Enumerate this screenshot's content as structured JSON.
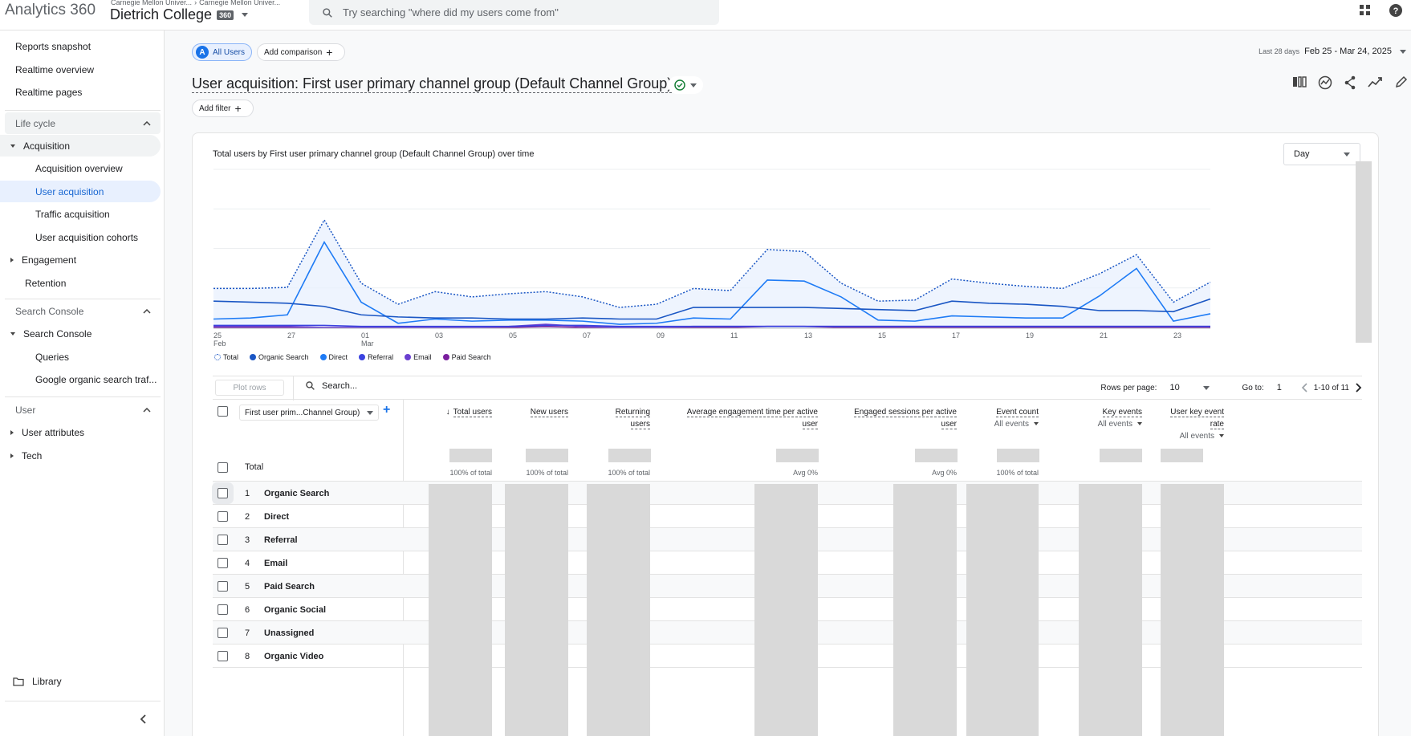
{
  "header": {
    "brand": "Analytics 360",
    "breadcrumb": [
      "Carnegie Mellon Univer...",
      "Carnegie Mellon Univer..."
    ],
    "property": "Dietrich College",
    "property_badge": "360",
    "search_placeholder": "Try searching \"where did my users come from\""
  },
  "sidebar": {
    "top_items": [
      "Reports snapshot",
      "Realtime overview",
      "Realtime pages"
    ],
    "lifecycle": {
      "heading": "Life cycle",
      "acquisition": "Acquisition",
      "acquisition_children": [
        "Acquisition overview",
        "User acquisition",
        "Traffic acquisition",
        "User acquisition cohorts"
      ],
      "engagement": "Engagement",
      "retention": "Retention"
    },
    "search_console": {
      "heading": "Search Console",
      "group": "Search Console",
      "children": [
        "Queries",
        "Google organic search traf..."
      ]
    },
    "user": {
      "heading": "User",
      "items": [
        "User attributes",
        "Tech"
      ]
    },
    "library": "Library"
  },
  "toolbar": {
    "segment_letter": "A",
    "segment": "All Users",
    "add_comparison": "Add comparison",
    "date_label": "Last 28 days",
    "date_range": "Feb 25 - Mar 24, 2025",
    "add_filter": "Add filter"
  },
  "report": {
    "title": "User acquisition: First user primary channel group (Default Channel Group)"
  },
  "chart_data": {
    "type": "line",
    "title": "Total users by First user primary channel group (Default Channel Group) over time",
    "granularity": "Day",
    "x_tick_labels": [
      {
        "top": "25",
        "bottom": "Feb"
      },
      {
        "top": "27",
        "bottom": ""
      },
      {
        "top": "01",
        "bottom": "Mar"
      },
      {
        "top": "03",
        "bottom": ""
      },
      {
        "top": "05",
        "bottom": ""
      },
      {
        "top": "07",
        "bottom": ""
      },
      {
        "top": "09",
        "bottom": ""
      },
      {
        "top": "11",
        "bottom": ""
      },
      {
        "top": "13",
        "bottom": ""
      },
      {
        "top": "15",
        "bottom": ""
      },
      {
        "top": "17",
        "bottom": ""
      },
      {
        "top": "19",
        "bottom": ""
      },
      {
        "top": "21",
        "bottom": ""
      },
      {
        "top": "23",
        "bottom": ""
      }
    ],
    "x": [
      "Feb 25",
      "Feb 26",
      "Feb 27",
      "Feb 28",
      "Mar 01",
      "Mar 02",
      "Mar 03",
      "Mar 04",
      "Mar 05",
      "Mar 06",
      "Mar 07",
      "Mar 08",
      "Mar 09",
      "Mar 10",
      "Mar 11",
      "Mar 12",
      "Mar 13",
      "Mar 14",
      "Mar 15",
      "Mar 16",
      "Mar 17",
      "Mar 18",
      "Mar 19",
      "Mar 20",
      "Mar 21",
      "Mar 22",
      "Mar 23",
      "Mar 24"
    ],
    "ylim": [
      0,
      150
    ],
    "series": [
      {
        "name": "Total",
        "color": "#1a56c4",
        "style": "dotted",
        "values": [
          37,
          37,
          38,
          102,
          42,
          22,
          34,
          29,
          32,
          34,
          29,
          19,
          22,
          37,
          35,
          74,
          72,
          42,
          25,
          26,
          46,
          42,
          39,
          37,
          51,
          69,
          24,
          43
        ]
      },
      {
        "name": "Organic Search",
        "color": "#1a56c4",
        "style": "solid",
        "values": [
          25,
          24,
          23,
          20,
          12,
          10,
          9,
          9,
          8,
          8,
          9,
          8,
          8,
          19,
          19,
          19,
          19,
          18,
          17,
          16,
          25,
          23,
          22,
          20,
          16,
          16,
          15,
          27
        ]
      },
      {
        "name": "Direct",
        "color": "#1e7bf5",
        "style": "solid",
        "values": [
          8,
          9,
          12,
          81,
          24,
          4,
          8,
          6,
          7,
          7,
          6,
          3,
          4,
          9,
          8,
          45,
          44,
          29,
          7,
          6,
          11,
          10,
          9,
          9,
          30,
          56,
          6,
          13
        ]
      },
      {
        "name": "Referral",
        "color": "#3b43e0",
        "style": "solid",
        "values": [
          2,
          2,
          2,
          2,
          1,
          1,
          1,
          1,
          1,
          2,
          2,
          1,
          1,
          1,
          1,
          1,
          1,
          1,
          1,
          1,
          1,
          1,
          1,
          1,
          1,
          1,
          1,
          1
        ]
      },
      {
        "name": "Email",
        "color": "#6a3fd0",
        "style": "solid",
        "values": [
          1,
          1,
          1,
          0,
          0,
          0,
          0,
          0,
          1,
          3,
          1,
          0,
          0,
          1,
          1,
          1,
          1,
          1,
          1,
          1,
          1,
          1,
          1,
          1,
          1,
          1,
          1,
          1
        ]
      },
      {
        "name": "Paid Search",
        "color": "#7a1f9e",
        "style": "solid",
        "values": [
          0,
          0,
          0,
          0,
          0,
          0,
          0,
          0,
          0,
          1,
          0,
          0,
          0,
          0,
          0,
          1,
          1,
          0,
          0,
          0,
          0,
          0,
          0,
          0,
          0,
          0,
          0,
          0
        ]
      }
    ]
  },
  "table": {
    "plot_rows": "Plot rows",
    "search_placeholder": "Search...",
    "rows_per_page_label": "Rows per page:",
    "rows_per_page": "10",
    "goto_label": "Go to:",
    "goto_value": "1",
    "range": "1-10 of 11",
    "dimension": "First user prim...Channel Group)",
    "columns": [
      {
        "title": [
          "Total users"
        ],
        "sub": "",
        "summary": "100% of total"
      },
      {
        "title": [
          "New users"
        ],
        "sub": "",
        "summary": "100% of total"
      },
      {
        "title": [
          "Returning",
          "users"
        ],
        "sub": "",
        "summary": "100% of total"
      },
      {
        "title": [
          "Average engagement time per active",
          "user"
        ],
        "sub": "",
        "summary": "Avg 0%"
      },
      {
        "title": [
          "Engaged sessions per active",
          "user"
        ],
        "sub": "",
        "summary": "Avg 0%"
      },
      {
        "title": [
          "Event count"
        ],
        "sub": "All events",
        "summary": "100% of total"
      },
      {
        "title": [
          "Key events"
        ],
        "sub": "All events",
        "summary": ""
      },
      {
        "title": [
          "User key event",
          "rate"
        ],
        "sub": "All events",
        "summary": ""
      }
    ],
    "total_label": "Total",
    "rows": [
      {
        "num": "1",
        "label": "Organic Search"
      },
      {
        "num": "2",
        "label": "Direct"
      },
      {
        "num": "3",
        "label": "Referral"
      },
      {
        "num": "4",
        "label": "Email"
      },
      {
        "num": "5",
        "label": "Paid Search"
      },
      {
        "num": "6",
        "label": "Organic Social"
      },
      {
        "num": "7",
        "label": "Unassigned"
      },
      {
        "num": "8",
        "label": "Organic Video"
      }
    ]
  }
}
